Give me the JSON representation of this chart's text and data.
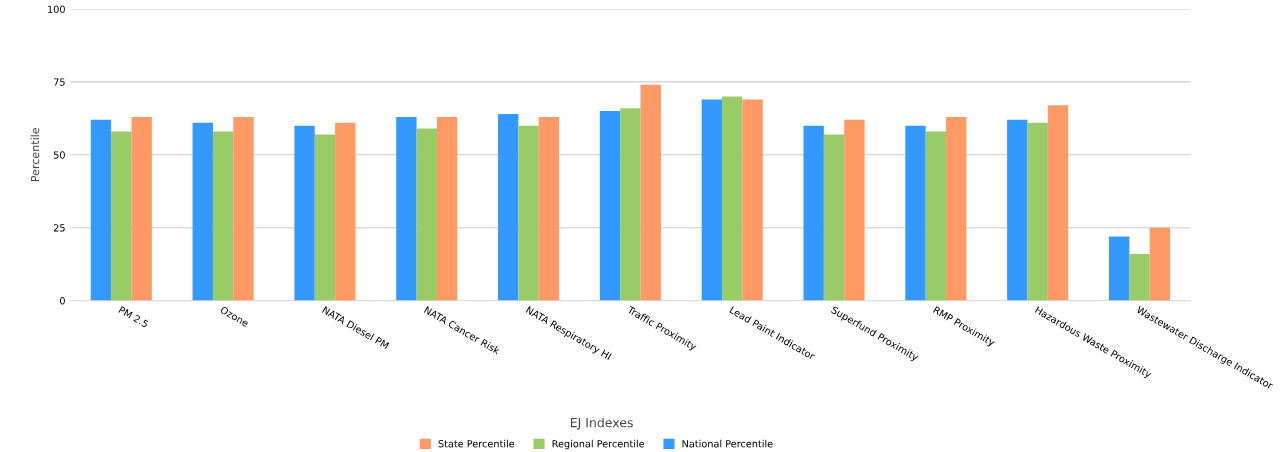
{
  "chart_data": {
    "type": "bar",
    "xlabel": "EJ Indexes",
    "ylabel": "Percentile",
    "categories": [
      "PM 2.5",
      "Ozone",
      "NATA Diesel PM",
      "NATA Cancer Risk",
      "NATA Respiratory HI",
      "Traffic Proximity",
      "Lead Paint Indicator",
      "Superfund Proximity",
      "RMP Proximity",
      "Hazardous Waste Proximity",
      "Wastewater Discharge Indicator"
    ],
    "series": [
      {
        "name": "National Percentile",
        "color": "#3399ff",
        "values": [
          62,
          61,
          60,
          63,
          64,
          65,
          69,
          60,
          60,
          62,
          22
        ]
      },
      {
        "name": "Regional Percentile",
        "color": "#99cc66",
        "values": [
          58,
          58,
          57,
          59,
          60,
          66,
          70,
          57,
          58,
          61,
          16
        ]
      },
      {
        "name": "State Percentile",
        "color": "#ff9966",
        "values": [
          63,
          63,
          61,
          63,
          63,
          74,
          69,
          62,
          63,
          67,
          25
        ]
      }
    ],
    "ylim": [
      0,
      100
    ],
    "yticks": [
      0,
      25,
      50,
      75,
      100
    ],
    "grid": "y",
    "legend": "bottom"
  }
}
